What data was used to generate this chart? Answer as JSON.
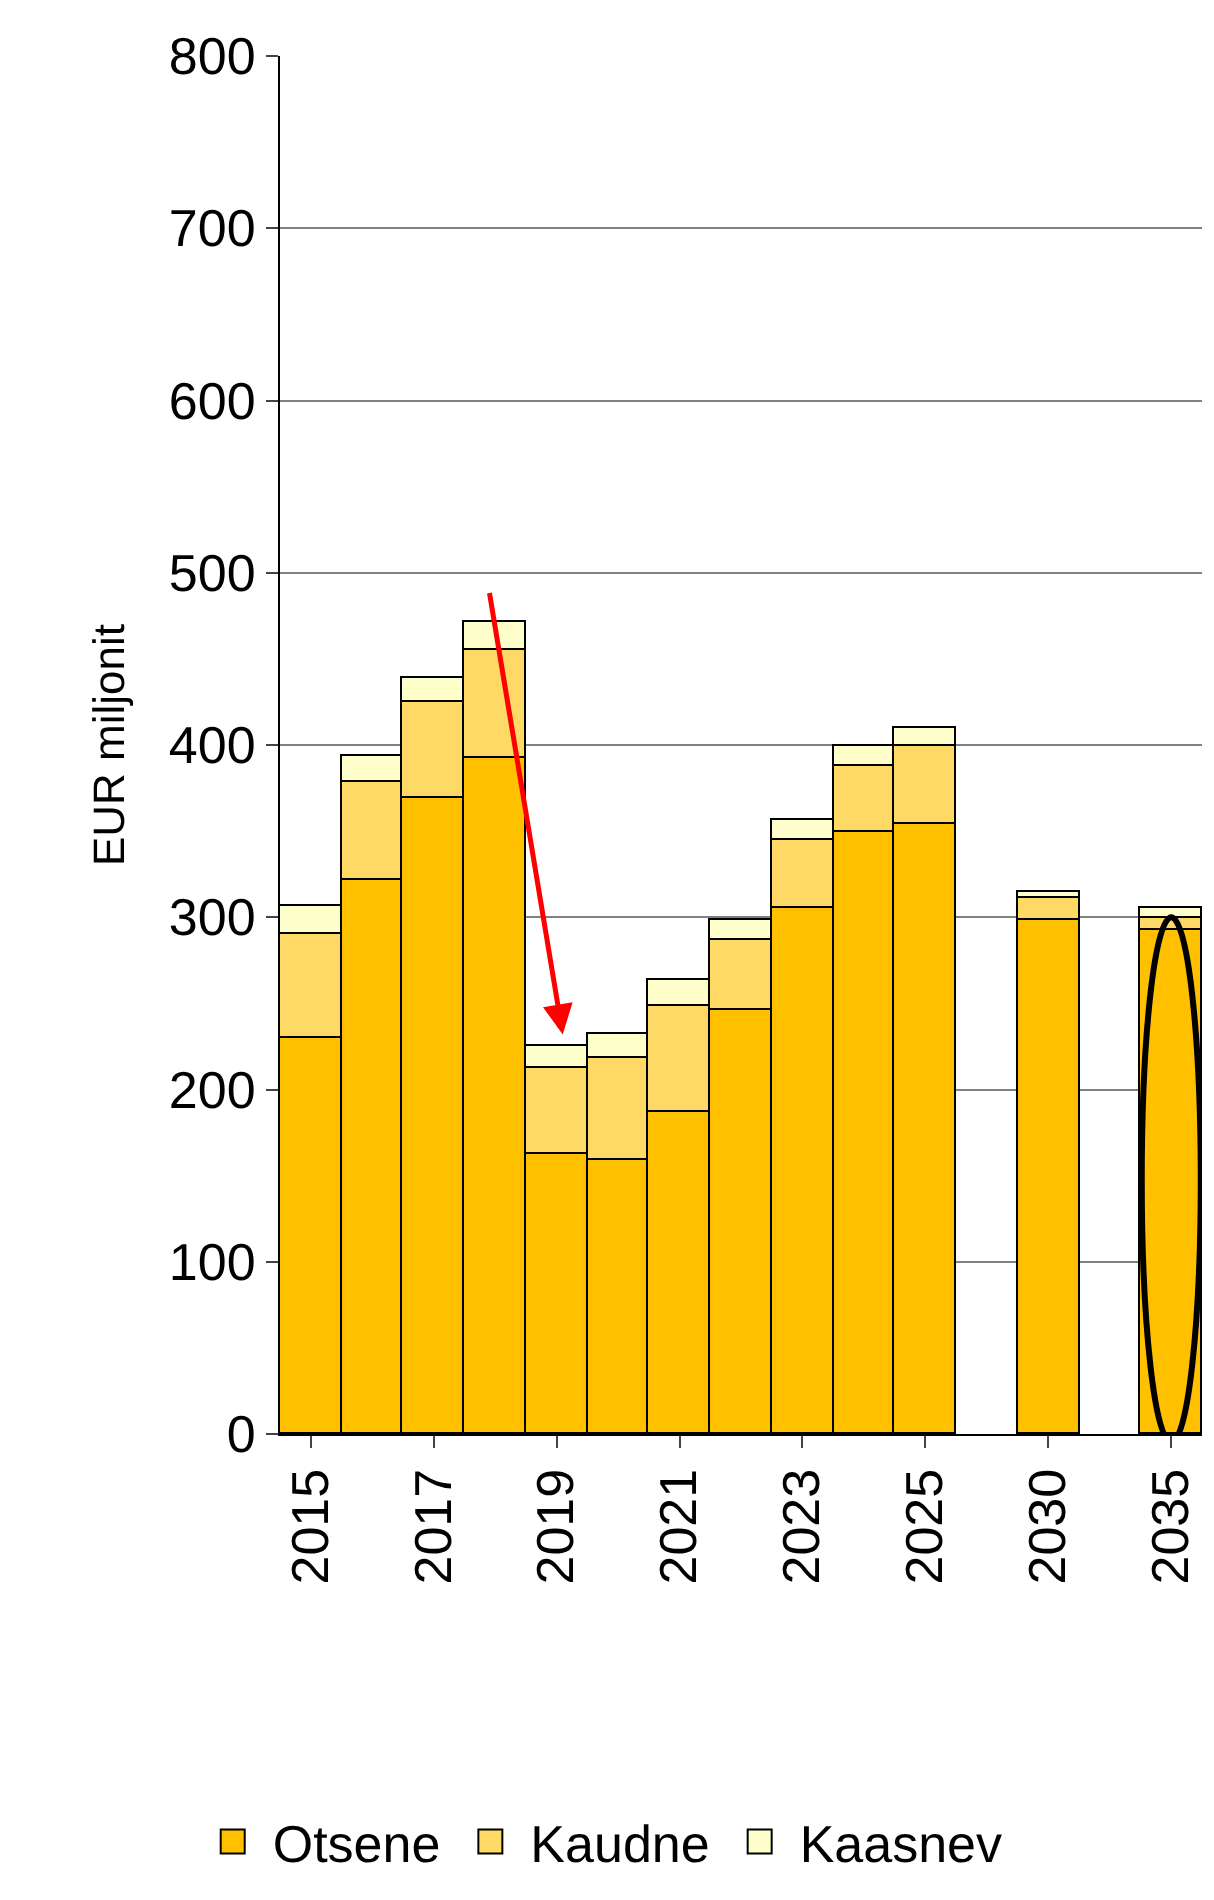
{
  "chart_data": {
    "type": "bar",
    "stacked": true,
    "ylabel": "EUR miljonit",
    "categories": [
      "2015",
      null,
      "2017",
      null,
      "2019",
      null,
      "2021",
      null,
      "2023",
      null,
      "2025",
      null,
      "2030",
      null,
      "2035"
    ],
    "series": [
      {
        "name": "Otsene",
        "color": "#ffc000",
        "values": [
          230,
          322,
          369,
          393,
          162,
          159,
          187,
          246,
          305,
          349,
          354,
          null,
          298,
          null,
          293
        ]
      },
      {
        "name": "Kaudne",
        "color": "#ffd966",
        "values": [
          60,
          57,
          56,
          62,
          51,
          59,
          61,
          41,
          40,
          39,
          45,
          null,
          13,
          null,
          7
        ]
      },
      {
        "name": "Kaasnev",
        "color": "#ffffcc",
        "values": [
          16,
          15,
          14,
          16,
          12,
          14,
          15,
          11,
          11,
          11,
          11,
          null,
          4,
          null,
          5
        ]
      }
    ],
    "ylim": [
      0,
      800
    ],
    "yticks": [
      0,
      100,
      200,
      300,
      400,
      500,
      600,
      700,
      800
    ],
    "grid": "y",
    "legend": "bottom"
  }
}
